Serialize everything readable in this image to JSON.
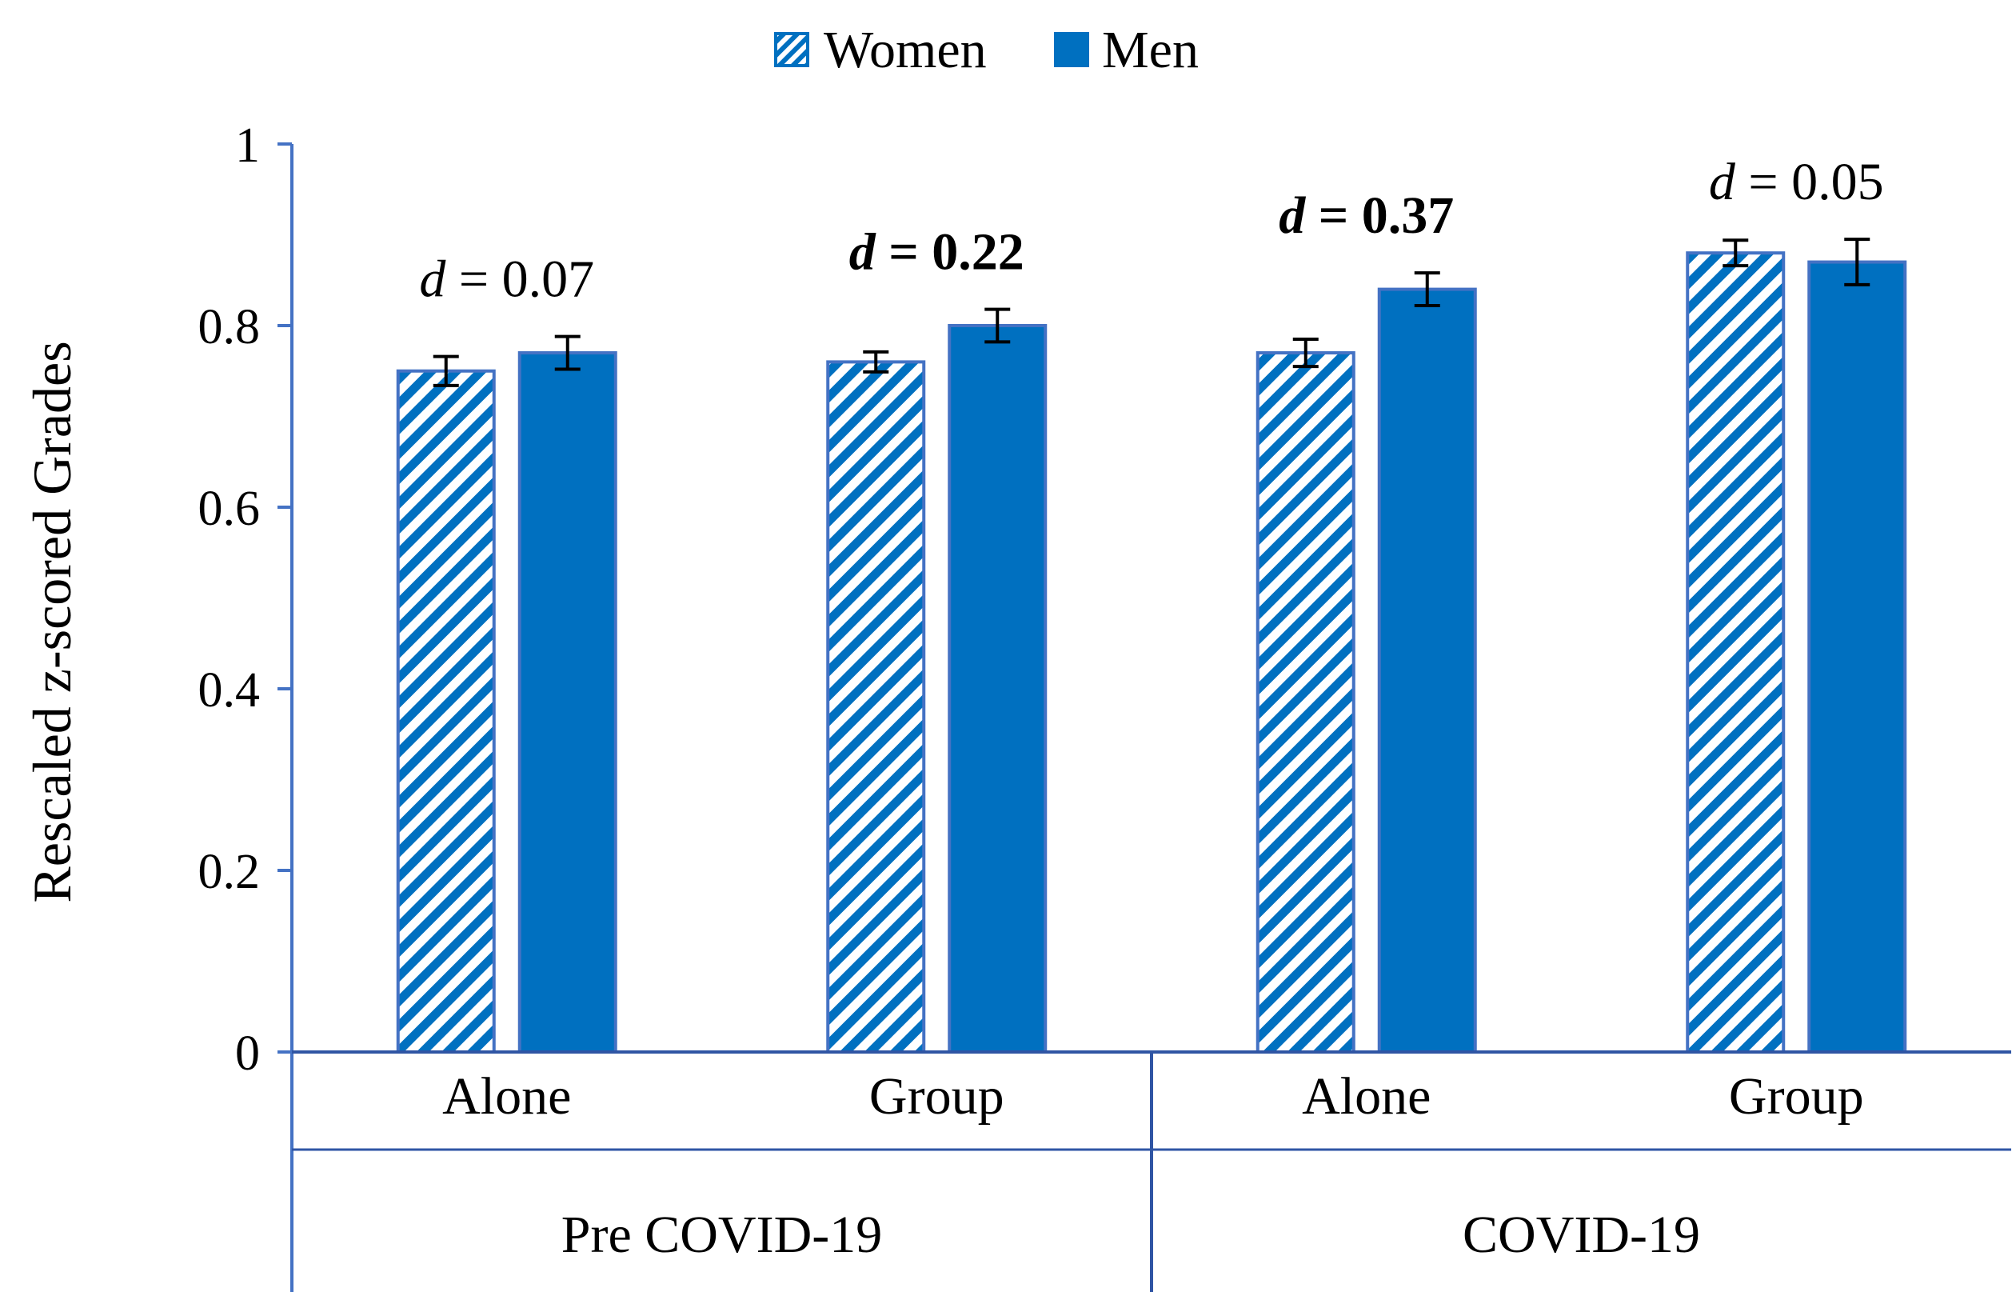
{
  "chart_data": {
    "type": "bar",
    "ylabel": "Rescaled z-scored Grades",
    "ylim": [
      0,
      1
    ],
    "yticks": [
      0,
      0.2,
      0.4,
      0.6,
      0.8,
      1
    ],
    "ytick_labels": [
      "0",
      "0.2",
      "0.4",
      "0.6",
      "0.8",
      "1"
    ],
    "legend": {
      "position": "top-center",
      "entries": [
        {
          "name": "Women",
          "pattern": "diagonal-hatch"
        },
        {
          "name": "Men",
          "pattern": "solid"
        }
      ]
    },
    "colors": {
      "primary": "#0070C0",
      "axis": "#4472C4",
      "frame": "#2F55A4"
    },
    "groups": [
      {
        "label": "Pre COVID-19",
        "categories": [
          "Alone",
          "Group"
        ]
      },
      {
        "label": "COVID-19",
        "categories": [
          "Alone",
          "Group"
        ]
      }
    ],
    "categories": [
      "Alone",
      "Group",
      "Alone",
      "Group"
    ],
    "series": [
      {
        "name": "Women",
        "values": [
          0.75,
          0.76,
          0.77,
          0.88
        ],
        "errors": [
          0.016,
          0.011,
          0.015,
          0.014
        ]
      },
      {
        "name": "Men",
        "values": [
          0.77,
          0.8,
          0.84,
          0.87
        ],
        "errors": [
          0.018,
          0.018,
          0.018,
          0.025
        ]
      }
    ],
    "annotations": [
      {
        "category_index": 0,
        "italic_part": "d",
        "rest": " = 0.07",
        "bold": false
      },
      {
        "category_index": 1,
        "italic_part": "d",
        "rest": " = 0.22",
        "bold": true
      },
      {
        "category_index": 2,
        "italic_part": "d",
        "rest": " = 0.37",
        "bold": true
      },
      {
        "category_index": 3,
        "italic_part": "d",
        "rest": " =  0.05",
        "bold": false
      }
    ]
  }
}
